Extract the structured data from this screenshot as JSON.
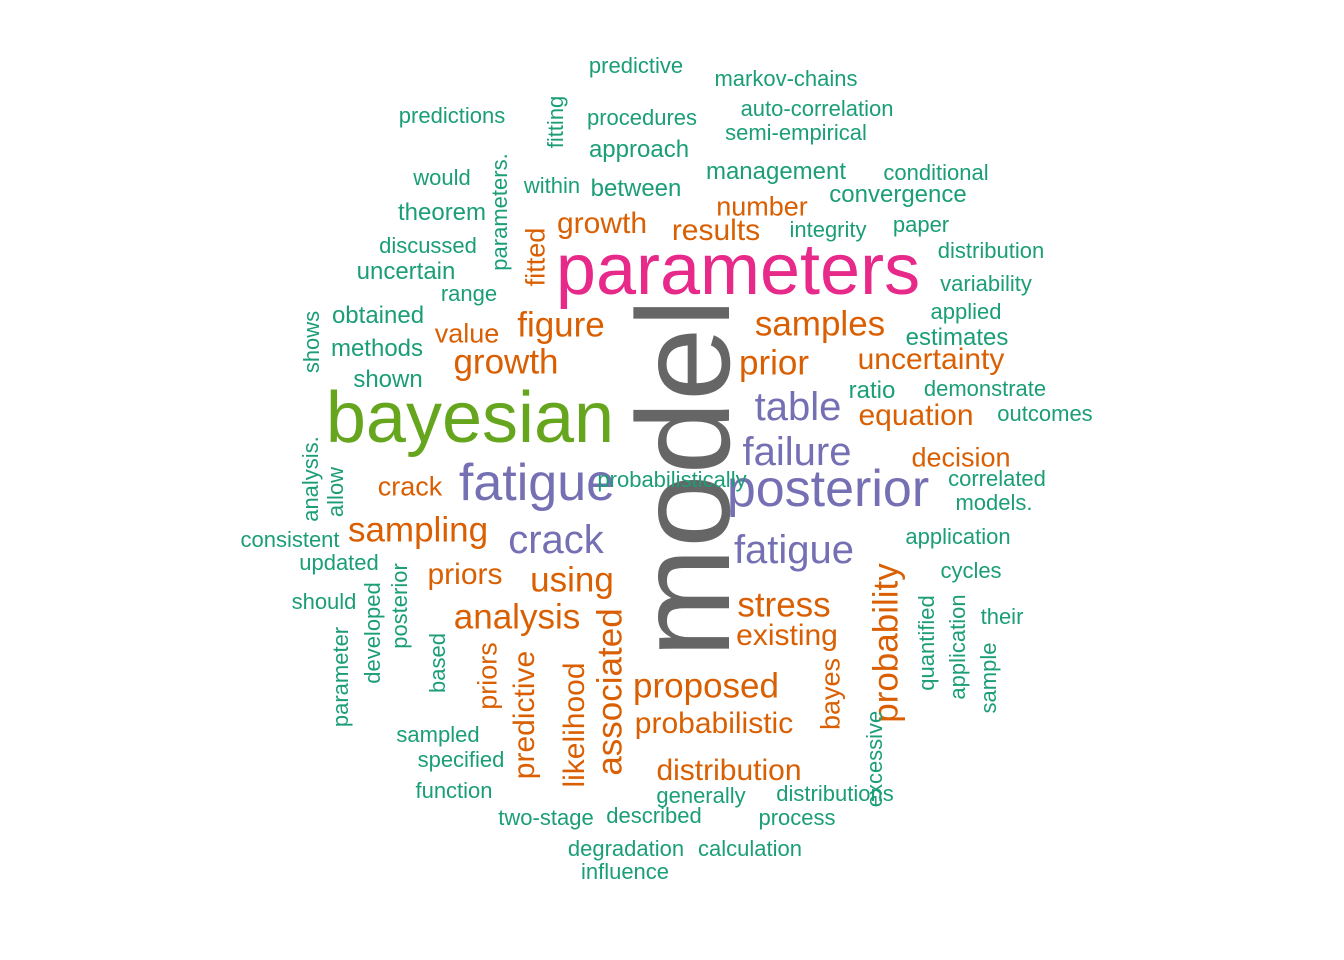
{
  "palette": {
    "teal": "#1b9e77",
    "orange": "#d95f02",
    "purple": "#7570b3",
    "magenta": "#e7298a",
    "green": "#66a61e",
    "gray": "#666666"
  },
  "words": [
    {
      "text": "model",
      "size": "largest",
      "color": "gray",
      "vertical": true
    },
    {
      "text": "parameters",
      "size": "very-large",
      "color": "magenta"
    },
    {
      "text": "bayesian",
      "size": "very-large",
      "color": "green"
    },
    {
      "text": "fatigue",
      "size": "large",
      "color": "purple"
    },
    {
      "text": "posterior",
      "size": "large",
      "color": "purple"
    },
    {
      "text": "fatigue",
      "size": "large-medium",
      "color": "purple"
    },
    {
      "text": "crack",
      "size": "large-medium",
      "color": "purple"
    },
    {
      "text": "failure",
      "size": "large-medium",
      "color": "purple"
    },
    {
      "text": "table",
      "size": "large-medium",
      "color": "purple"
    },
    {
      "text": "figure",
      "size": "medium",
      "color": "orange"
    },
    {
      "text": "growth",
      "size": "medium",
      "color": "orange"
    },
    {
      "text": "prior",
      "size": "medium",
      "color": "orange"
    },
    {
      "text": "samples",
      "size": "medium",
      "color": "orange"
    },
    {
      "text": "sampling",
      "size": "medium",
      "color": "orange"
    },
    {
      "text": "using",
      "size": "medium",
      "color": "orange"
    },
    {
      "text": "analysis",
      "size": "medium",
      "color": "orange"
    },
    {
      "text": "stress",
      "size": "medium",
      "color": "orange"
    },
    {
      "text": "proposed",
      "size": "medium",
      "color": "orange"
    },
    {
      "text": "associated",
      "size": "medium",
      "color": "orange",
      "vertical": true
    },
    {
      "text": "probability",
      "size": "medium",
      "color": "orange",
      "vertical": true
    },
    {
      "text": "priors",
      "size": "small-medium",
      "color": "orange"
    },
    {
      "text": "existing",
      "size": "small-medium",
      "color": "orange"
    },
    {
      "text": "equation",
      "size": "small-medium",
      "color": "orange"
    },
    {
      "text": "uncertainty",
      "size": "small-medium",
      "color": "orange"
    },
    {
      "text": "growth",
      "size": "small-medium",
      "color": "orange"
    },
    {
      "text": "results",
      "size": "small-medium",
      "color": "orange"
    },
    {
      "text": "probabilistic",
      "size": "small-medium",
      "color": "orange"
    },
    {
      "text": "distribution",
      "size": "small-medium",
      "color": "orange"
    },
    {
      "text": "likelihood",
      "size": "small-medium",
      "color": "orange",
      "vertical": true
    },
    {
      "text": "predictive",
      "size": "small-medium",
      "color": "orange",
      "vertical": true
    },
    {
      "text": "crack",
      "size": "small",
      "color": "orange"
    },
    {
      "text": "value",
      "size": "small",
      "color": "orange"
    },
    {
      "text": "decision",
      "size": "small",
      "color": "orange"
    },
    {
      "text": "number",
      "size": "small",
      "color": "orange"
    },
    {
      "text": "fitted",
      "size": "small",
      "color": "orange",
      "vertical": true
    },
    {
      "text": "bayes",
      "size": "small",
      "color": "orange",
      "vertical": true
    },
    {
      "text": "priors",
      "size": "small",
      "color": "orange",
      "vertical": true
    },
    {
      "text": "predictive",
      "size": "tiny",
      "color": "teal"
    },
    {
      "text": "markov-chains",
      "size": "tiny",
      "color": "teal"
    },
    {
      "text": "predictions",
      "size": "tiny",
      "color": "teal"
    },
    {
      "text": "procedures",
      "size": "tiny",
      "color": "teal"
    },
    {
      "text": "auto-correlation",
      "size": "tiny",
      "color": "teal"
    },
    {
      "text": "semi-empirical",
      "size": "tiny",
      "color": "teal"
    },
    {
      "text": "fitting",
      "size": "tiny",
      "color": "teal",
      "vertical": true
    },
    {
      "text": "approach",
      "size": "tiny-plus",
      "color": "teal"
    },
    {
      "text": "would",
      "size": "tiny",
      "color": "teal"
    },
    {
      "text": "parameters.",
      "size": "tiny",
      "color": "teal",
      "vertical": true
    },
    {
      "text": "within",
      "size": "tiny",
      "color": "teal"
    },
    {
      "text": "between",
      "size": "tiny-plus",
      "color": "teal"
    },
    {
      "text": "management",
      "size": "tiny-plus",
      "color": "teal"
    },
    {
      "text": "conditional",
      "size": "tiny",
      "color": "teal"
    },
    {
      "text": "convergence",
      "size": "tiny-plus",
      "color": "teal"
    },
    {
      "text": "integrity",
      "size": "tiny",
      "color": "teal"
    },
    {
      "text": "theorem",
      "size": "tiny-plus",
      "color": "teal"
    },
    {
      "text": "paper",
      "size": "tiny",
      "color": "teal"
    },
    {
      "text": "discussed",
      "size": "tiny",
      "color": "teal"
    },
    {
      "text": "distribution",
      "size": "tiny",
      "color": "teal"
    },
    {
      "text": "uncertain",
      "size": "tiny-plus",
      "color": "teal"
    },
    {
      "text": "range",
      "size": "tiny",
      "color": "teal"
    },
    {
      "text": "variability",
      "size": "tiny",
      "color": "teal"
    },
    {
      "text": "obtained",
      "size": "tiny-plus",
      "color": "teal"
    },
    {
      "text": "applied",
      "size": "tiny",
      "color": "teal"
    },
    {
      "text": "shows",
      "size": "tiny",
      "color": "teal",
      "vertical": true
    },
    {
      "text": "estimates",
      "size": "tiny-plus",
      "color": "teal"
    },
    {
      "text": "methods",
      "size": "tiny-plus",
      "color": "teal"
    },
    {
      "text": "shown",
      "size": "tiny-plus",
      "color": "teal"
    },
    {
      "text": "ratio",
      "size": "tiny-plus",
      "color": "teal"
    },
    {
      "text": "demonstrate",
      "size": "tiny",
      "color": "teal"
    },
    {
      "text": "outcomes",
      "size": "tiny",
      "color": "teal"
    },
    {
      "text": "analysis.",
      "size": "tiny",
      "color": "teal",
      "vertical": true
    },
    {
      "text": "allow",
      "size": "tiny",
      "color": "teal",
      "vertical": true
    },
    {
      "text": "correlated",
      "size": "tiny",
      "color": "teal"
    },
    {
      "text": "models.",
      "size": "tiny",
      "color": "teal"
    },
    {
      "text": "consistent",
      "size": "tiny",
      "color": "teal"
    },
    {
      "text": "application",
      "size": "tiny",
      "color": "teal"
    },
    {
      "text": "updated",
      "size": "tiny",
      "color": "teal"
    },
    {
      "text": "cycles",
      "size": "tiny",
      "color": "teal"
    },
    {
      "text": "should",
      "size": "tiny",
      "color": "teal"
    },
    {
      "text": "posterior",
      "size": "tiny",
      "color": "teal",
      "vertical": true
    },
    {
      "text": "developed",
      "size": "tiny",
      "color": "teal",
      "vertical": true
    },
    {
      "text": "parameter",
      "size": "tiny",
      "color": "teal",
      "vertical": true
    },
    {
      "text": "based",
      "size": "tiny",
      "color": "teal",
      "vertical": true
    },
    {
      "text": "quantified",
      "size": "tiny",
      "color": "teal",
      "vertical": true
    },
    {
      "text": "application",
      "size": "tiny",
      "color": "teal",
      "vertical": true
    },
    {
      "text": "their",
      "size": "tiny",
      "color": "teal"
    },
    {
      "text": "sample",
      "size": "tiny",
      "color": "teal",
      "vertical": true
    },
    {
      "text": "sampled",
      "size": "tiny",
      "color": "teal"
    },
    {
      "text": "excessive",
      "size": "tiny",
      "color": "teal",
      "vertical": true
    },
    {
      "text": "specified",
      "size": "tiny",
      "color": "teal"
    },
    {
      "text": "function",
      "size": "tiny",
      "color": "teal"
    },
    {
      "text": "generally",
      "size": "tiny",
      "color": "teal"
    },
    {
      "text": "distributions",
      "size": "tiny",
      "color": "teal"
    },
    {
      "text": "two-stage",
      "size": "tiny",
      "color": "teal"
    },
    {
      "text": "described",
      "size": "tiny",
      "color": "teal"
    },
    {
      "text": "process",
      "size": "tiny",
      "color": "teal"
    },
    {
      "text": "degradation",
      "size": "tiny",
      "color": "teal"
    },
    {
      "text": "calculation",
      "size": "tiny",
      "color": "teal"
    },
    {
      "text": "influence",
      "size": "tiny",
      "color": "teal"
    },
    {
      "text": "probabilistically",
      "size": "tiny",
      "color": "teal"
    }
  ]
}
